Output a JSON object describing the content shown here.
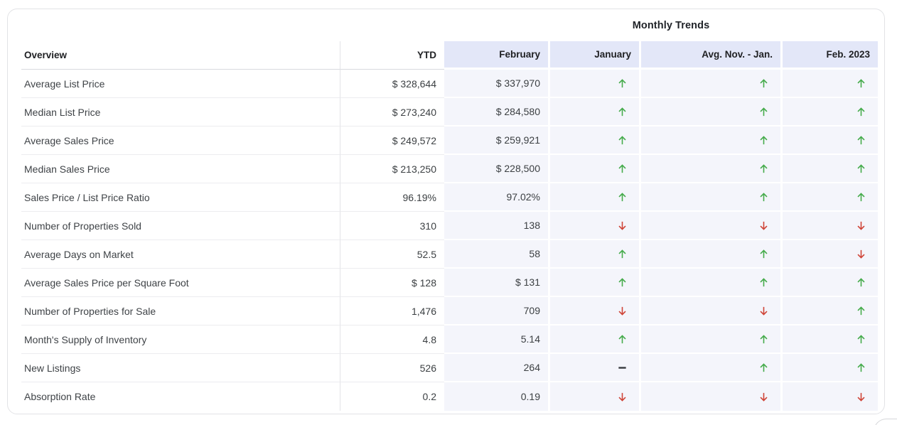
{
  "card": {
    "group_header": "Monthly Trends",
    "columns": {
      "overview": "Overview",
      "ytd": "YTD",
      "february": "February",
      "january": "January",
      "avg_nov_jan": "Avg. Nov. - Jan.",
      "feb_2023": "Feb. 2023"
    },
    "rows": [
      {
        "label": "Average List Price",
        "ytd": "$ 328,644",
        "february": "$ 337,970",
        "january": "up",
        "avg_nov_jan": "up",
        "feb_2023": "up"
      },
      {
        "label": "Median List Price",
        "ytd": "$ 273,240",
        "february": "$ 284,580",
        "january": "up",
        "avg_nov_jan": "up",
        "feb_2023": "up"
      },
      {
        "label": "Average Sales Price",
        "ytd": "$ 249,572",
        "february": "$ 259,921",
        "january": "up",
        "avg_nov_jan": "up",
        "feb_2023": "up"
      },
      {
        "label": "Median Sales Price",
        "ytd": "$ 213,250",
        "february": "$ 228,500",
        "january": "up",
        "avg_nov_jan": "up",
        "feb_2023": "up"
      },
      {
        "label": "Sales Price / List Price Ratio",
        "ytd": "96.19%",
        "february": "97.02%",
        "january": "up",
        "avg_nov_jan": "up",
        "feb_2023": "up"
      },
      {
        "label": "Number of Properties Sold",
        "ytd": "310",
        "february": "138",
        "january": "down",
        "avg_nov_jan": "down",
        "feb_2023": "down"
      },
      {
        "label": "Average Days on Market",
        "ytd": "52.5",
        "february": "58",
        "january": "up",
        "avg_nov_jan": "up",
        "feb_2023": "down"
      },
      {
        "label": "Average Sales Price per Square Foot",
        "ytd": "$ 128",
        "february": "$ 131",
        "january": "up",
        "avg_nov_jan": "up",
        "feb_2023": "up"
      },
      {
        "label": "Number of Properties for Sale",
        "ytd": "1,476",
        "february": "709",
        "january": "down",
        "avg_nov_jan": "down",
        "feb_2023": "up"
      },
      {
        "label": "Month's Supply of Inventory",
        "ytd": "4.8",
        "february": "5.14",
        "january": "up",
        "avg_nov_jan": "up",
        "feb_2023": "up"
      },
      {
        "label": "New Listings",
        "ytd": "526",
        "february": "264",
        "january": "flat",
        "avg_nov_jan": "up",
        "feb_2023": "up"
      },
      {
        "label": "Absorption Rate",
        "ytd": "0.2",
        "february": "0.19",
        "january": "down",
        "avg_nov_jan": "down",
        "feb_2023": "down"
      }
    ]
  },
  "icons": {
    "up": "arrow-up-icon",
    "down": "arrow-down-icon",
    "flat": "dash-icon"
  },
  "colors": {
    "trend_up": "#45ab4b",
    "trend_down": "#cf4437",
    "trend_flat": "#393c41",
    "header_cell_bg": "#e3e7f8",
    "trend_cell_bg": "#f4f5fb"
  }
}
